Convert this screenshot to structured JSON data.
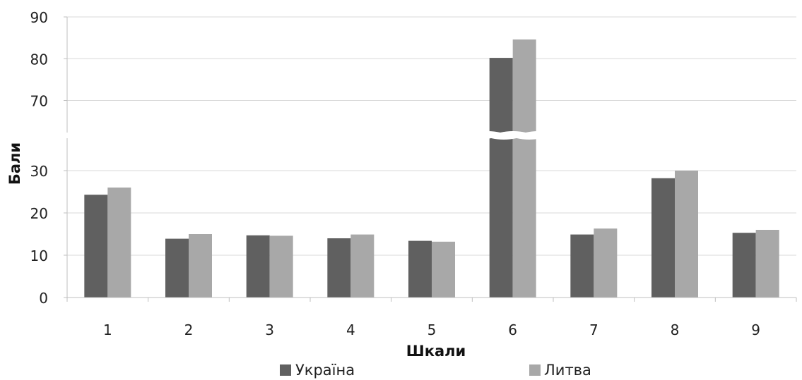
{
  "chart_data": {
    "type": "bar",
    "title": "",
    "xlabel": "Шкали",
    "ylabel": "Бали",
    "categories": [
      "1",
      "2",
      "3",
      "4",
      "5",
      "6",
      "7",
      "8",
      "9"
    ],
    "series": [
      {
        "name": "Україна",
        "values": [
          24.3,
          13.9,
          14.7,
          14.0,
          13.4,
          80.2,
          14.9,
          28.2,
          15.3
        ],
        "color": "#606060"
      },
      {
        "name": "Литва",
        "values": [
          26.0,
          15.0,
          14.6,
          14.9,
          13.2,
          84.6,
          16.3,
          30.0,
          16.0
        ],
        "color": "#a8a8a8"
      }
    ],
    "ylim": [
      0,
      90
    ],
    "axis_break": [
      37,
      63
    ],
    "yticks": [
      0,
      10,
      20,
      30,
      70,
      80,
      90
    ],
    "grid": true,
    "legend_position": "bottom"
  }
}
